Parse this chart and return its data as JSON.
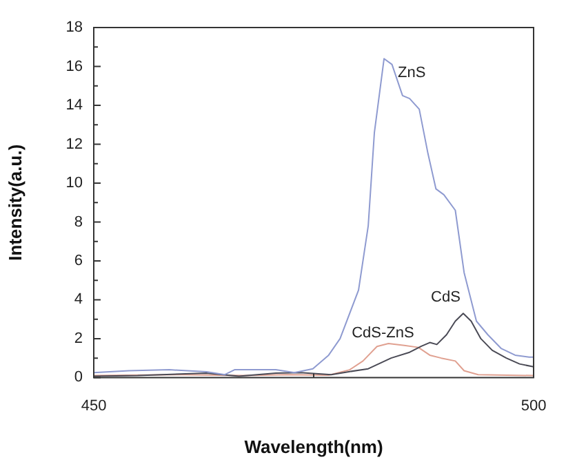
{
  "chart_data": {
    "type": "line",
    "xlabel": "Wavelength(nm)",
    "ylabel": "Intensity(a.u.)",
    "xlim": [
      450,
      500
    ],
    "xticks": [
      450,
      {
        "value": 475,
        "label": null
      },
      500
    ],
    "ylim": [
      0,
      18
    ],
    "yticks": [
      0,
      {
        "value": 1,
        "label": null
      },
      2,
      {
        "value": 3,
        "label": null
      },
      4,
      {
        "value": 5,
        "label": null
      },
      6,
      {
        "value": 7,
        "label": null
      },
      8,
      {
        "value": 9,
        "label": null
      },
      10,
      {
        "value": 11,
        "label": null
      },
      12,
      {
        "value": 13,
        "label": null
      },
      14,
      {
        "value": 15,
        "label": null
      },
      16,
      {
        "value": 17,
        "label": null
      },
      18
    ],
    "grid": false,
    "legend": false,
    "marker": "none",
    "line_style": "solid",
    "series": [
      {
        "name": "ZnS",
        "color": "#8e9ad0",
        "x": [
          450,
          454,
          458.6,
          462.8,
          464.9,
          466,
          470.7,
          472.8,
          474.9,
          476.7,
          478,
          480.1,
          481.2,
          481.9,
          483,
          483.9,
          485.1,
          485.9,
          487,
          488,
          488.9,
          489.8,
          491.1,
          492.1,
          493.5,
          494.8,
          496.3,
          497.9,
          499.5,
          500
        ],
        "values": [
          0.25,
          0.35,
          0.4,
          0.3,
          0.15,
          0.4,
          0.4,
          0.25,
          0.45,
          1.15,
          2,
          4.5,
          7.8,
          12.6,
          16.4,
          16.1,
          14.5,
          14.35,
          13.8,
          11.5,
          9.7,
          9.4,
          8.6,
          5.4,
          2.9,
          2.2,
          1.5,
          1.15,
          1.05,
          1.05
        ]
      },
      {
        "name": "CdS",
        "color": "#4a4a55",
        "x": [
          450,
          455,
          462.8,
          466.5,
          470.7,
          473.5,
          477,
          479,
          481.2,
          483.8,
          485.9,
          487.2,
          488.2,
          489,
          490.1,
          491.1,
          492,
          492.9,
          494,
          495.3,
          496.9,
          498.4,
          500
        ],
        "values": [
          0.07,
          0.1,
          0.23,
          0.07,
          0.23,
          0.25,
          0.15,
          0.3,
          0.45,
          1,
          1.3,
          1.6,
          1.8,
          1.7,
          2.2,
          2.9,
          3.3,
          2.9,
          2,
          1.4,
          1,
          0.7,
          0.55
        ]
      },
      {
        "name": "CdS-ZnS",
        "color": "#e0a090",
        "x": [
          450,
          460,
          467,
          472,
          476.7,
          479.1,
          480.6,
          482.2,
          483.5,
          485.3,
          486.9,
          488.2,
          489.5,
          491.1,
          492.1,
          493.7,
          500
        ],
        "values": [
          0.1,
          0.15,
          0.1,
          0.15,
          0.12,
          0.4,
          0.85,
          1.6,
          1.75,
          1.65,
          1.55,
          1.15,
          1,
          0.85,
          0.35,
          0.15,
          0.1
        ]
      }
    ]
  }
}
